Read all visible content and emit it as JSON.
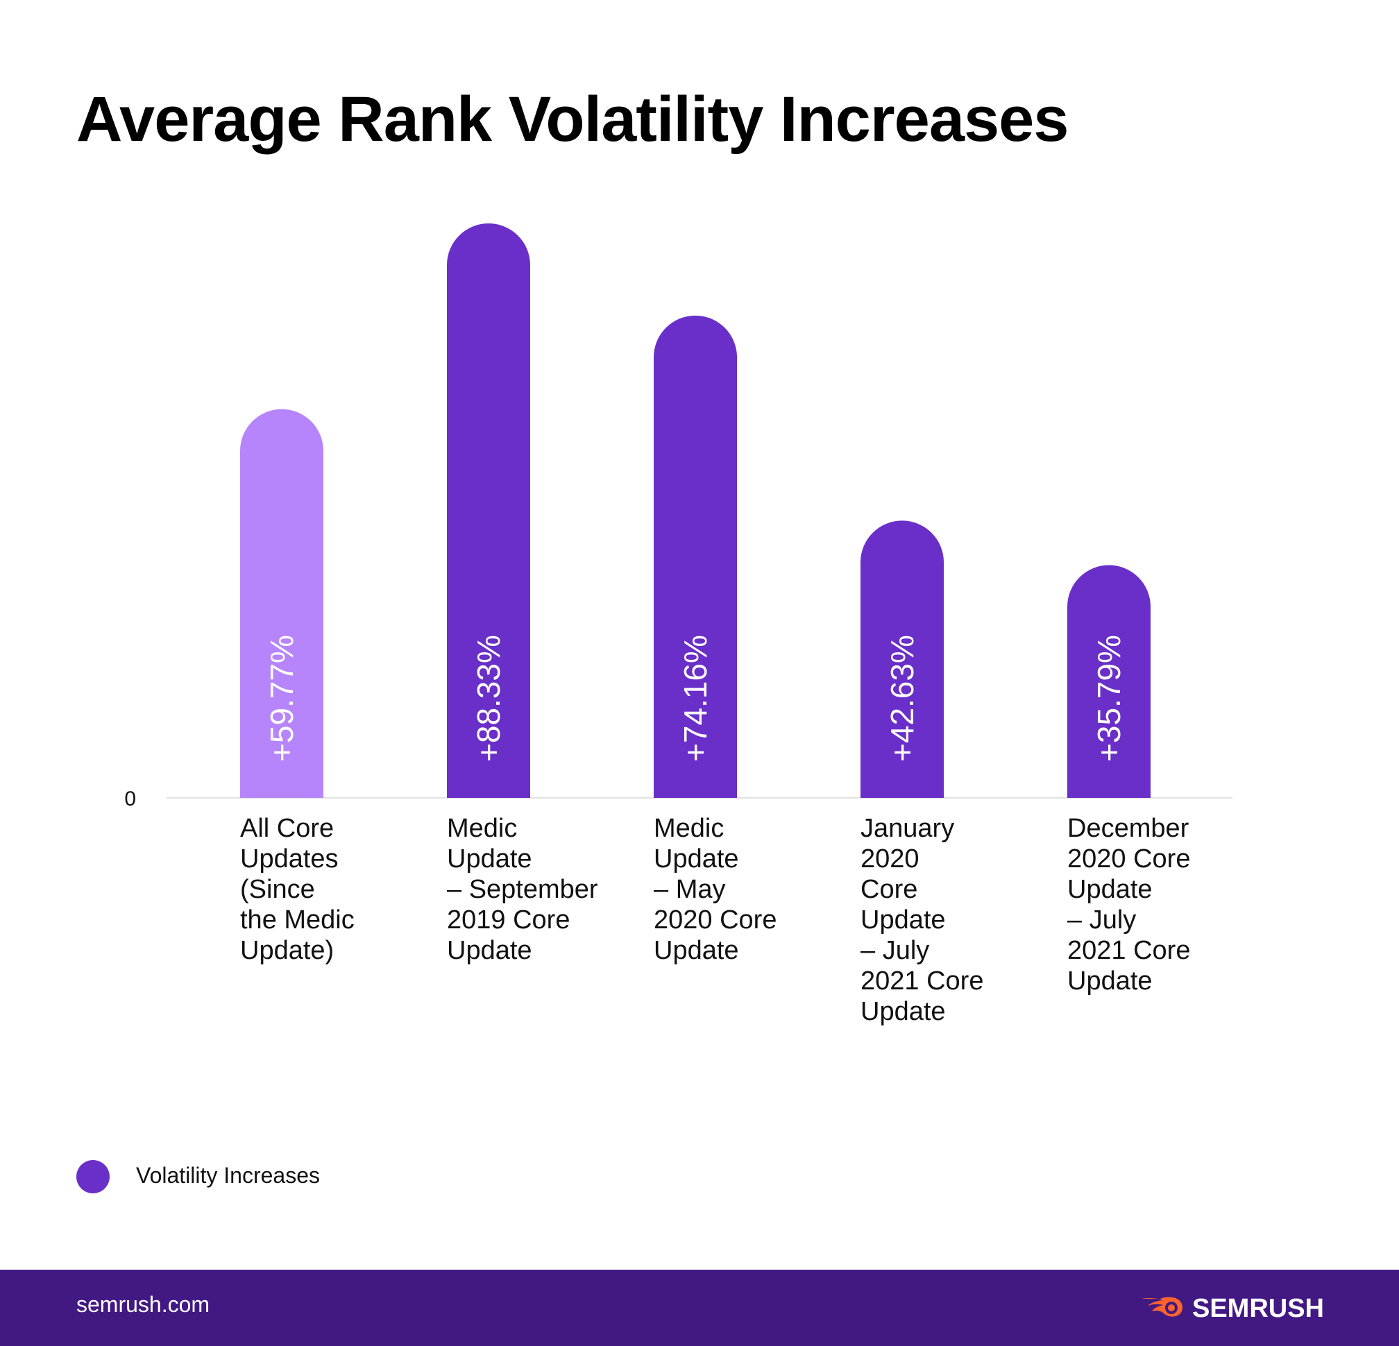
{
  "colors": {
    "highlight_bar": "#B785FB",
    "bar": "#6A2FC8",
    "value_text": "#FFFFFF",
    "axis": "#E2E2E2",
    "footer_bg": "#421983",
    "brand_orange": "#FF642D"
  },
  "chart_data": {
    "type": "bar",
    "title": "Average Rank Volatility Increases",
    "categories": [
      "All Core Updates (Since the Medic Update)",
      "Medic Update – September 2019 Core Update",
      "Medic Update – May 2020 Core Update",
      "January 2020 Core Update – July 2021 Core Update",
      "December 2020 Core Update – July 2021 Core Update"
    ],
    "category_lines": [
      [
        "All Core",
        "Updates",
        "(Since",
        "the Medic",
        "Update)"
      ],
      [
        "Medic",
        "Update",
        "– September",
        "2019 Core",
        "Update"
      ],
      [
        "Medic",
        "Update",
        "– May",
        "2020 Core",
        "Update"
      ],
      [
        "January",
        "2020",
        "Core",
        "Update",
        "– July",
        "2021 Core",
        "Update"
      ],
      [
        "December",
        "2020 Core",
        "Update",
        "– July",
        "2021 Core",
        "Update"
      ]
    ],
    "series": [
      {
        "name": "Volatility Increases",
        "values": [
          59.77,
          88.33,
          74.16,
          42.63,
          35.79
        ],
        "labels": [
          "+59.77%",
          "+88.33%",
          "+74.16%",
          "+42.63%",
          "+35.79%"
        ]
      }
    ],
    "highlight_index": 0,
    "ylim": [
      0,
      88.33
    ],
    "y_tick_labels": [
      "0"
    ],
    "xlabel": "",
    "ylabel": "",
    "grid": false,
    "legend": [
      "Volatility Increases"
    ],
    "legend_position": "bottom-left"
  },
  "footer": {
    "site": "semrush.com",
    "brand": "SEMRUSH",
    "logo_icon": "semrush-flame-icon"
  }
}
